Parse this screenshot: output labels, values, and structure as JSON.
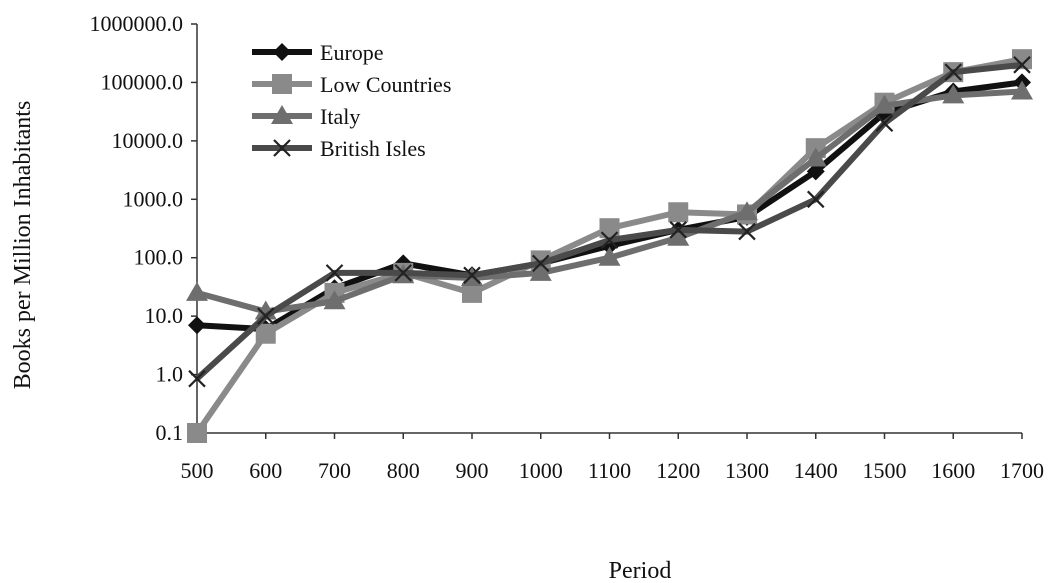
{
  "chart_data": {
    "type": "line",
    "title": "",
    "xlabel": "Period",
    "ylabel": "Books per Million Inhabitants",
    "yscale": "log",
    "ylim": [
      0.1,
      1000000
    ],
    "grid": false,
    "legend_position": "top-left",
    "categories": [
      "500",
      "600",
      "700",
      "800",
      "900",
      "1000",
      "1100",
      "1200",
      "1300",
      "1400",
      "1500",
      "1600",
      "1700"
    ],
    "y_ticks": [
      "0.1",
      "1.0",
      "10.0",
      "100.0",
      "1000.0",
      "10000.0",
      "100000.0",
      "1000000.0"
    ],
    "series": [
      {
        "name": "Europe",
        "marker": "diamond",
        "color": "#111111",
        "values": [
          7,
          6,
          30,
          80,
          50,
          80,
          160,
          300,
          500,
          3000,
          30000,
          70000,
          100000
        ]
      },
      {
        "name": "Low Countries",
        "marker": "square",
        "color": "#8a8a8a",
        "values": [
          0.1,
          5,
          25,
          55,
          25,
          90,
          320,
          600,
          550,
          7500,
          45000,
          150000,
          250000
        ]
      },
      {
        "name": "Italy",
        "marker": "triangle",
        "color": "#6e6e6e",
        "values": [
          25,
          12,
          18,
          50,
          45,
          55,
          100,
          220,
          600,
          5000,
          40000,
          60000,
          70000
        ]
      },
      {
        "name": "British Isles",
        "marker": "x",
        "color": "#4a4a4a",
        "values": [
          0.85,
          10,
          55,
          55,
          50,
          80,
          200,
          300,
          280,
          1000,
          20000,
          150000,
          200000
        ]
      }
    ]
  }
}
